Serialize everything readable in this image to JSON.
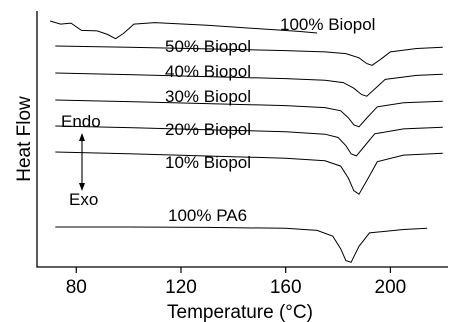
{
  "chart_data": {
    "type": "line",
    "xlabel": "Temperature (°C)",
    "ylabel": "Heat Flow",
    "xlim": [
      65,
      222
    ],
    "xticks": [
      80,
      120,
      160,
      200
    ],
    "grid": false,
    "annotations": {
      "endo": "Endo",
      "exo": "Exo"
    },
    "series": [
      {
        "name": "100% Biopol",
        "x": [
          70,
          74,
          78,
          82,
          88,
          92,
          95,
          98,
          102,
          110,
          130,
          150,
          165,
          172
        ],
        "y": [
          0.0,
          -0.6,
          -0.4,
          -1.8,
          -1.9,
          -2.6,
          -3.4,
          -2.4,
          -0.6,
          -0.3,
          -0.8,
          -1.5,
          -2.0,
          -2.3
        ]
      },
      {
        "name": "50% Biopol",
        "x": [
          72,
          100,
          130,
          160,
          175,
          183,
          188,
          191,
          193,
          196,
          200,
          210,
          220
        ],
        "y": [
          0.0,
          -0.3,
          -0.7,
          -1.1,
          -1.4,
          -1.8,
          -2.8,
          -4.2,
          -4.6,
          -3.3,
          -1.4,
          -0.6,
          -0.3
        ]
      },
      {
        "name": "40% Biopol",
        "x": [
          72,
          100,
          130,
          160,
          175,
          182,
          186,
          189,
          191,
          194,
          198,
          210,
          220
        ],
        "y": [
          0.0,
          -0.4,
          -0.9,
          -1.4,
          -1.8,
          -2.4,
          -3.8,
          -5.4,
          -5.8,
          -4.0,
          -1.6,
          -0.6,
          -0.3
        ]
      },
      {
        "name": "30% Biopol",
        "x": [
          72,
          100,
          130,
          160,
          175,
          181,
          184,
          186,
          188,
          191,
          195,
          205,
          220
        ],
        "y": [
          0.0,
          -0.4,
          -0.9,
          -1.4,
          -1.9,
          -2.7,
          -4.5,
          -6.2,
          -6.7,
          -4.5,
          -1.7,
          -0.7,
          -0.3
        ]
      },
      {
        "name": "20% Biopol",
        "x": [
          72,
          100,
          130,
          160,
          175,
          180,
          183,
          185,
          187,
          190,
          194,
          205,
          220
        ],
        "y": [
          0.0,
          -0.4,
          -0.9,
          -1.4,
          -2.0,
          -2.8,
          -4.8,
          -6.8,
          -7.3,
          -5.0,
          -1.9,
          -0.7,
          -0.3
        ]
      },
      {
        "name": "10% Biopol",
        "x": [
          72,
          100,
          130,
          160,
          175,
          181,
          184,
          186,
          188,
          191,
          195,
          205,
          220
        ],
        "y": [
          0.0,
          -0.4,
          -0.9,
          -1.4,
          -2.0,
          -3.2,
          -6.0,
          -8.8,
          -9.6,
          -6.5,
          -2.2,
          -0.7,
          -0.3
        ]
      },
      {
        "name": "100% PA6",
        "x": [
          72,
          100,
          130,
          160,
          172,
          178,
          181,
          183,
          185,
          188,
          192,
          205,
          214
        ],
        "y": [
          0.0,
          0.0,
          -0.1,
          -0.3,
          -0.8,
          -2.2,
          -5.2,
          -8.0,
          -8.4,
          -4.6,
          -1.4,
          -0.6,
          -0.3
        ]
      }
    ]
  }
}
